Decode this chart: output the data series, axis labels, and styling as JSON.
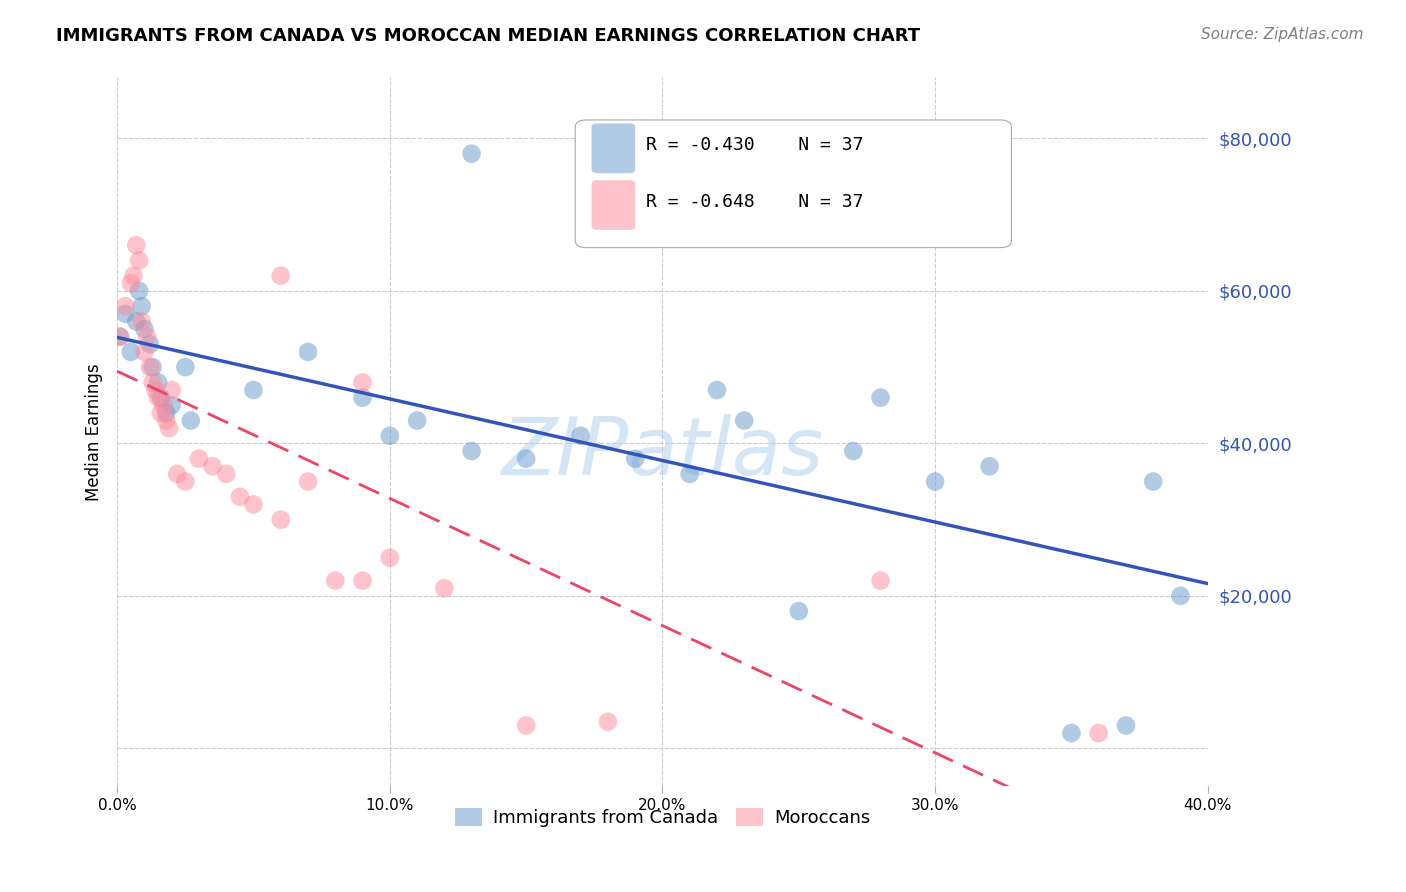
{
  "title": "IMMIGRANTS FROM CANADA VS MOROCCAN MEDIAN EARNINGS CORRELATION CHART",
  "source": "Source: ZipAtlas.com",
  "ylabel": "Median Earnings",
  "right_yticks": [
    0,
    20000,
    40000,
    60000,
    80000
  ],
  "right_yticklabels": [
    "",
    "$20,000",
    "$40,000",
    "$60,000",
    "$80,000"
  ],
  "xlim": [
    0.0,
    0.4
  ],
  "ylim": [
    -5000,
    88000
  ],
  "legend_blue_r": "R = -0.430",
  "legend_blue_n": "N = 37",
  "legend_pink_r": "R = -0.648",
  "legend_pink_n": "N = 37",
  "legend_label_blue": "Immigrants from Canada",
  "legend_label_pink": "Moroccans",
  "blue_color": "#6699CC",
  "pink_color": "#FF8899",
  "blue_line_color": "#3355BB",
  "pink_line_color": "#EE4466",
  "watermark_text": "ZIPatlas",
  "watermark_color": "#AACCEE",
  "blue_x": [
    0.001,
    0.003,
    0.005,
    0.007,
    0.008,
    0.009,
    0.01,
    0.012,
    0.013,
    0.015,
    0.016,
    0.018,
    0.02,
    0.025,
    0.027,
    0.05,
    0.07,
    0.09,
    0.1,
    0.11,
    0.13,
    0.15,
    0.17,
    0.19,
    0.21,
    0.23,
    0.25,
    0.27,
    0.3,
    0.32,
    0.35,
    0.37,
    0.38,
    0.39,
    0.13,
    0.22,
    0.28
  ],
  "blue_y": [
    54000,
    57000,
    52000,
    56000,
    60000,
    58000,
    55000,
    53000,
    50000,
    48000,
    46000,
    44000,
    45000,
    50000,
    43000,
    47000,
    52000,
    46000,
    41000,
    43000,
    39000,
    38000,
    41000,
    38000,
    36000,
    43000,
    18000,
    39000,
    35000,
    37000,
    2000,
    3000,
    35000,
    20000,
    78000,
    47000,
    46000
  ],
  "pink_x": [
    0.001,
    0.003,
    0.005,
    0.006,
    0.007,
    0.008,
    0.009,
    0.01,
    0.011,
    0.012,
    0.013,
    0.014,
    0.015,
    0.016,
    0.017,
    0.018,
    0.019,
    0.02,
    0.022,
    0.025,
    0.03,
    0.035,
    0.04,
    0.045,
    0.05,
    0.06,
    0.07,
    0.08,
    0.09,
    0.1,
    0.12,
    0.15,
    0.18,
    0.28,
    0.36,
    0.09,
    0.06
  ],
  "pink_y": [
    54000,
    58000,
    61000,
    62000,
    66000,
    64000,
    56000,
    52000,
    54000,
    50000,
    48000,
    47000,
    46000,
    44000,
    45000,
    43000,
    42000,
    47000,
    36000,
    35000,
    38000,
    37000,
    36000,
    33000,
    32000,
    30000,
    35000,
    22000,
    22000,
    25000,
    21000,
    3000,
    3500,
    22000,
    2000,
    48000,
    62000
  ]
}
